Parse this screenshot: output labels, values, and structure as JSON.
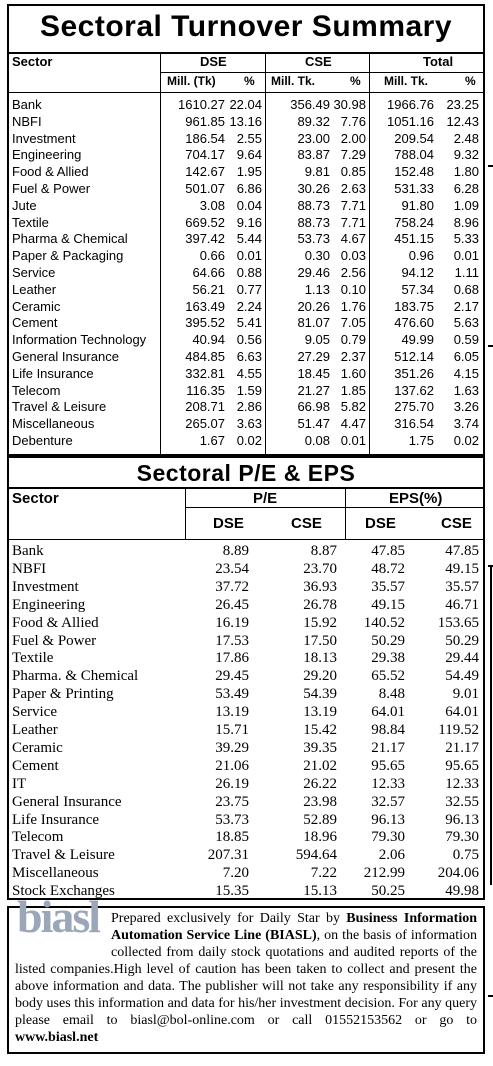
{
  "turnover": {
    "title": "Sectoral Turnover Summary",
    "headers": {
      "sector": "Sector",
      "dse": "DSE",
      "cse": "CSE",
      "total": "Total",
      "dse_mill": "Mill. (Tk)",
      "pct": "%",
      "cse_mill": "Mill. Tk.",
      "total_mill": "Mill. Tk."
    },
    "rows": [
      {
        "sector": "Bank",
        "dse_mill": "1610.27",
        "dse_pct": "22.04",
        "cse_mill": "356.49",
        "cse_pct": "30.98",
        "total_mill": "1966.76",
        "total_pct": "23.25"
      },
      {
        "sector": "NBFI",
        "dse_mill": "961.85",
        "dse_pct": "13.16",
        "cse_mill": "89.32",
        "cse_pct": "7.76",
        "total_mill": "1051.16",
        "total_pct": "12.43"
      },
      {
        "sector": "Investment",
        "dse_mill": "186.54",
        "dse_pct": "2.55",
        "cse_mill": "23.00",
        "cse_pct": "2.00",
        "total_mill": "209.54",
        "total_pct": "2.48"
      },
      {
        "sector": "Engineering",
        "dse_mill": "704.17",
        "dse_pct": "9.64",
        "cse_mill": "83.87",
        "cse_pct": "7.29",
        "total_mill": "788.04",
        "total_pct": "9.32"
      },
      {
        "sector": "Food & Allied",
        "dse_mill": "142.67",
        "dse_pct": "1.95",
        "cse_mill": "9.81",
        "cse_pct": "0.85",
        "total_mill": "152.48",
        "total_pct": "1.80"
      },
      {
        "sector": "Fuel & Power",
        "dse_mill": "501.07",
        "dse_pct": "6.86",
        "cse_mill": "30.26",
        "cse_pct": "2.63",
        "total_mill": "531.33",
        "total_pct": "6.28"
      },
      {
        "sector": "Jute",
        "dse_mill": "3.08",
        "dse_pct": "0.04",
        "cse_mill": "88.73",
        "cse_pct": "7.71",
        "total_mill": "91.80",
        "total_pct": "1.09"
      },
      {
        "sector": "Textile",
        "dse_mill": "669.52",
        "dse_pct": "9.16",
        "cse_mill": "88.73",
        "cse_pct": "7.71",
        "total_mill": "758.24",
        "total_pct": "8.96"
      },
      {
        "sector": "Pharma & Chemical",
        "dse_mill": "397.42",
        "dse_pct": "5.44",
        "cse_mill": "53.73",
        "cse_pct": "4.67",
        "total_mill": "451.15",
        "total_pct": "5.33"
      },
      {
        "sector": "Paper & Packaging",
        "dse_mill": "0.66",
        "dse_pct": "0.01",
        "cse_mill": "0.30",
        "cse_pct": "0.03",
        "total_mill": "0.96",
        "total_pct": "0.01"
      },
      {
        "sector": "Service",
        "dse_mill": "64.66",
        "dse_pct": "0.88",
        "cse_mill": "29.46",
        "cse_pct": "2.56",
        "total_mill": "94.12",
        "total_pct": "1.11"
      },
      {
        "sector": "Leather",
        "dse_mill": "56.21",
        "dse_pct": "0.77",
        "cse_mill": "1.13",
        "cse_pct": "0.10",
        "total_mill": "57.34",
        "total_pct": "0.68"
      },
      {
        "sector": "Ceramic",
        "dse_mill": "163.49",
        "dse_pct": "2.24",
        "cse_mill": "20.26",
        "cse_pct": "1.76",
        "total_mill": "183.75",
        "total_pct": "2.17"
      },
      {
        "sector": "Cement",
        "dse_mill": "395.52",
        "dse_pct": "5.41",
        "cse_mill": "81.07",
        "cse_pct": "7.05",
        "total_mill": "476.60",
        "total_pct": "5.63"
      },
      {
        "sector": "Information Technology",
        "dse_mill": "40.94",
        "dse_pct": "0.56",
        "cse_mill": "9.05",
        "cse_pct": "0.79",
        "total_mill": "49.99",
        "total_pct": "0.59"
      },
      {
        "sector": "General Insurance",
        "dse_mill": "484.85",
        "dse_pct": "6.63",
        "cse_mill": "27.29",
        "cse_pct": "2.37",
        "total_mill": "512.14",
        "total_pct": "6.05"
      },
      {
        "sector": "Life Insurance",
        "dse_mill": "332.81",
        "dse_pct": "4.55",
        "cse_mill": "18.45",
        "cse_pct": "1.60",
        "total_mill": "351.26",
        "total_pct": "4.15"
      },
      {
        "sector": "Telecom",
        "dse_mill": "116.35",
        "dse_pct": "1.59",
        "cse_mill": "21.27",
        "cse_pct": "1.85",
        "total_mill": "137.62",
        "total_pct": "1.63"
      },
      {
        "sector": "Travel & Leisure",
        "dse_mill": "208.71",
        "dse_pct": "2.86",
        "cse_mill": "66.98",
        "cse_pct": "5.82",
        "total_mill": "275.70",
        "total_pct": "3.26"
      },
      {
        "sector": "Miscellaneous",
        "dse_mill": "265.07",
        "dse_pct": "3.63",
        "cse_mill": "51.47",
        "cse_pct": "4.47",
        "total_mill": "316.54",
        "total_pct": "3.74"
      },
      {
        "sector": "Debenture",
        "dse_mill": "1.67",
        "dse_pct": "0.02",
        "cse_mill": "0.08",
        "cse_pct": "0.01",
        "total_mill": "1.75",
        "total_pct": "0.02"
      }
    ]
  },
  "pe_eps": {
    "title": "Sectoral P/E & EPS",
    "headers": {
      "sector": "Sector",
      "pe": "P/E",
      "eps": "EPS(%)",
      "dse": "DSE",
      "cse": "CSE"
    },
    "rows": [
      {
        "sector": "Bank",
        "pe_dse": "8.89",
        "pe_cse": "8.87",
        "eps_dse": "47.85",
        "eps_cse": "47.85"
      },
      {
        "sector": "NBFI",
        "pe_dse": "23.54",
        "pe_cse": "23.70",
        "eps_dse": "48.72",
        "eps_cse": "49.15"
      },
      {
        "sector": "Investment",
        "pe_dse": "37.72",
        "pe_cse": "36.93",
        "eps_dse": "35.57",
        "eps_cse": "35.57"
      },
      {
        "sector": "Engineering",
        "pe_dse": "26.45",
        "pe_cse": "26.78",
        "eps_dse": "49.15",
        "eps_cse": "46.71"
      },
      {
        "sector": "Food & Allied",
        "pe_dse": "16.19",
        "pe_cse": "15.92",
        "eps_dse": "140.52",
        "eps_cse": "153.65"
      },
      {
        "sector": "Fuel & Power",
        "pe_dse": "17.53",
        "pe_cse": "17.50",
        "eps_dse": "50.29",
        "eps_cse": "50.29"
      },
      {
        "sector": "Textile",
        "pe_dse": "17.86",
        "pe_cse": "18.13",
        "eps_dse": "29.38",
        "eps_cse": "29.44"
      },
      {
        "sector": "Pharma. & Chemical",
        "pe_dse": "29.45",
        "pe_cse": "29.20",
        "eps_dse": "65.52",
        "eps_cse": "54.49"
      },
      {
        "sector": "Paper & Printing",
        "pe_dse": "53.49",
        "pe_cse": "54.39",
        "eps_dse": "8.48",
        "eps_cse": "9.01"
      },
      {
        "sector": "Service",
        "pe_dse": "13.19",
        "pe_cse": "13.19",
        "eps_dse": "64.01",
        "eps_cse": "64.01"
      },
      {
        "sector": "Leather",
        "pe_dse": "15.71",
        "pe_cse": "15.42",
        "eps_dse": "98.84",
        "eps_cse": "119.52"
      },
      {
        "sector": "Ceramic",
        "pe_dse": "39.29",
        "pe_cse": "39.35",
        "eps_dse": "21.17",
        "eps_cse": "21.17"
      },
      {
        "sector": "Cement",
        "pe_dse": "21.06",
        "pe_cse": "21.02",
        "eps_dse": "95.65",
        "eps_cse": "95.65"
      },
      {
        "sector": "IT",
        "pe_dse": "26.19",
        "pe_cse": "26.22",
        "eps_dse": "12.33",
        "eps_cse": "12.33"
      },
      {
        "sector": "General Insurance",
        "pe_dse": "23.75",
        "pe_cse": "23.98",
        "eps_dse": "32.57",
        "eps_cse": "32.55"
      },
      {
        "sector": "Life Insurance",
        "pe_dse": "53.73",
        "pe_cse": "52.89",
        "eps_dse": "96.13",
        "eps_cse": "96.13"
      },
      {
        "sector": "Telecom",
        "pe_dse": "18.85",
        "pe_cse": "18.96",
        "eps_dse": "79.30",
        "eps_cse": "79.30"
      },
      {
        "sector": "Travel & Leisure",
        "pe_dse": "207.31",
        "pe_cse": "594.64",
        "eps_dse": "2.06",
        "eps_cse": "0.75"
      },
      {
        "sector": "Miscellaneous",
        "pe_dse": "7.20",
        "pe_cse": "7.22",
        "eps_dse": "212.99",
        "eps_cse": "204.06"
      },
      {
        "sector": "Stock Exchanges",
        "pe_dse": "15.35",
        "pe_cse": "15.13",
        "eps_dse": "50.25",
        "eps_cse": "49.98"
      }
    ]
  },
  "footer": {
    "logo_text": "biasl",
    "text_1": "Prepared exclusively for Daily Star by ",
    "company": "Business Information Automation Service Line (BIASL)",
    "text_2": ", on the basis of information collected from daily stock quotations and audited reports of the listed companies.High level of caution has been taken to collect and present the above information and data. The publisher will not take any responsibility if any body uses this information and data for his/her investment decision. For any query please email to biasl@bol-online.com or call 01552153562 or go to ",
    "website": "www.biasl.net"
  }
}
